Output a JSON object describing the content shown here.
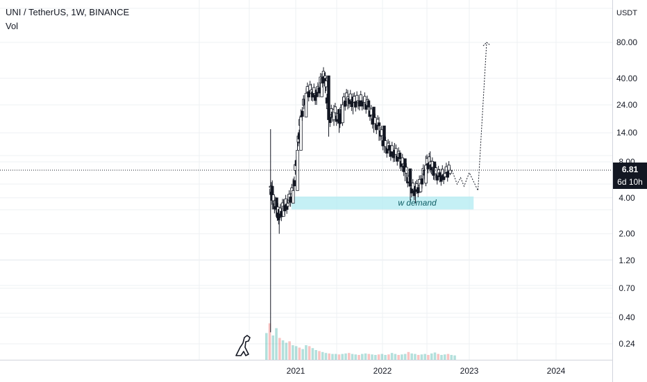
{
  "header": {
    "symbol_line": "UNI / TetherUS, 1W, BINANCE",
    "volume_label": "Vol"
  },
  "price_axis": {
    "unit": "USDT",
    "current_price": "6.81",
    "countdown": "6d 10h"
  },
  "annotation": {
    "label": "w demand"
  },
  "colors": {
    "up": "#26a69a",
    "down": "#ef5350",
    "candle_body": "#131722",
    "demand_zone": "#b2ebf2",
    "grid": "#eef0f3",
    "badge": "#131722"
  },
  "chart_data": {
    "type": "candlestick",
    "title": "UNI / TetherUS, 1W, BINANCE",
    "y_scale": "log",
    "y_unit": "USDT",
    "y_ticks": [
      0.24,
      0.4,
      0.7,
      1.2,
      2.0,
      4.0,
      8.0,
      14.0,
      24.0,
      40.0,
      80.0
    ],
    "y_tick_labels": [
      "0.24",
      "0.40",
      "0.70",
      "1.20",
      "2.00",
      "4.00",
      "8.00",
      "14.00",
      "24.00",
      "40.00",
      "80.00"
    ],
    "x_tick_labels": [
      "2021",
      "2022",
      "2023",
      "2024"
    ],
    "x_ticks": [
      2021.0,
      2022.0,
      2023.0,
      2024.0
    ],
    "current_price": 6.81,
    "weekly_close_path": [
      {
        "t": 2020.71,
        "close": 5.0,
        "high": 15.0,
        "low": 0.3
      },
      {
        "t": 2020.73,
        "close": 4.0,
        "high": 5.6,
        "low": 3.2
      },
      {
        "t": 2020.78,
        "close": 3.2,
        "high": 3.8,
        "low": 2.7
      },
      {
        "t": 2020.81,
        "close": 2.8,
        "high": 3.2,
        "low": 2.0
      },
      {
        "t": 2020.86,
        "close": 3.4,
        "high": 3.9,
        "low": 2.9
      },
      {
        "t": 2020.91,
        "close": 3.6,
        "high": 4.3,
        "low": 3.2
      },
      {
        "t": 2020.97,
        "close": 4.6,
        "high": 5.8,
        "low": 3.8
      },
      {
        "t": 2021.02,
        "close": 10.0,
        "high": 13.0,
        "low": 6.5
      },
      {
        "t": 2021.06,
        "close": 19.0,
        "high": 22.0,
        "low": 14.0
      },
      {
        "t": 2021.12,
        "close": 30.0,
        "high": 33.0,
        "low": 24.0
      },
      {
        "t": 2021.18,
        "close": 32.0,
        "high": 36.0,
        "low": 26.0
      },
      {
        "t": 2021.24,
        "close": 28.0,
        "high": 34.0,
        "low": 24.0
      },
      {
        "t": 2021.3,
        "close": 40.0,
        "high": 44.0,
        "low": 28.0
      },
      {
        "t": 2021.34,
        "close": 42.0,
        "high": 45.0,
        "low": 30.0
      },
      {
        "t": 2021.38,
        "close": 18.0,
        "high": 36.0,
        "low": 13.0
      },
      {
        "t": 2021.44,
        "close": 22.0,
        "high": 24.0,
        "low": 16.0
      },
      {
        "t": 2021.5,
        "close": 17.0,
        "high": 22.0,
        "low": 14.0
      },
      {
        "t": 2021.54,
        "close": 24.0,
        "high": 28.0,
        "low": 16.0
      },
      {
        "t": 2021.6,
        "close": 28.0,
        "high": 32.0,
        "low": 22.0
      },
      {
        "t": 2021.66,
        "close": 25.0,
        "high": 30.0,
        "low": 20.0
      },
      {
        "t": 2021.72,
        "close": 26.0,
        "high": 29.0,
        "low": 22.0
      },
      {
        "t": 2021.78,
        "close": 26.0,
        "high": 28.0,
        "low": 22.0
      },
      {
        "t": 2021.84,
        "close": 23.0,
        "high": 27.0,
        "low": 19.0
      },
      {
        "t": 2021.9,
        "close": 17.0,
        "high": 22.0,
        "low": 14.0
      },
      {
        "t": 2021.96,
        "close": 16.0,
        "high": 19.0,
        "low": 12.0
      },
      {
        "t": 2022.02,
        "close": 11.0,
        "high": 16.0,
        "low": 9.5
      },
      {
        "t": 2022.08,
        "close": 10.0,
        "high": 12.0,
        "low": 8.8
      },
      {
        "t": 2022.14,
        "close": 9.5,
        "high": 11.5,
        "low": 8.0
      },
      {
        "t": 2022.2,
        "close": 8.5,
        "high": 10.0,
        "low": 7.0
      },
      {
        "t": 2022.26,
        "close": 7.0,
        "high": 8.5,
        "low": 5.5
      },
      {
        "t": 2022.32,
        "close": 5.0,
        "high": 6.8,
        "low": 3.8
      },
      {
        "t": 2022.38,
        "close": 4.5,
        "high": 5.5,
        "low": 3.6
      },
      {
        "t": 2022.44,
        "close": 5.3,
        "high": 6.2,
        "low": 4.4
      },
      {
        "t": 2022.5,
        "close": 7.5,
        "high": 9.0,
        "low": 5.0
      },
      {
        "t": 2022.55,
        "close": 8.0,
        "high": 9.8,
        "low": 6.5
      },
      {
        "t": 2022.6,
        "close": 6.5,
        "high": 7.8,
        "low": 5.6
      },
      {
        "t": 2022.66,
        "close": 6.0,
        "high": 7.0,
        "low": 5.4
      },
      {
        "t": 2022.72,
        "close": 6.4,
        "high": 7.2,
        "low": 5.8
      },
      {
        "t": 2022.78,
        "close": 6.81,
        "high": 7.2,
        "low": 6.2
      }
    ],
    "projection_path": [
      {
        "t": 2022.8,
        "price": 6.81
      },
      {
        "t": 2022.86,
        "price": 5.2
      },
      {
        "t": 2022.9,
        "price": 5.9
      },
      {
        "t": 2022.94,
        "price": 5.0
      },
      {
        "t": 2023.0,
        "price": 6.5
      },
      {
        "t": 2023.1,
        "price": 4.6
      },
      {
        "t": 2023.2,
        "price": 80.0
      }
    ],
    "demand_zone": {
      "t_start": 2020.95,
      "t_end": 2023.05,
      "price_low": 3.2,
      "price_high": 4.1,
      "label": "w demand"
    },
    "volume_relative": [
      0.55,
      0.75,
      0.5,
      0.65,
      0.45,
      0.4,
      0.35,
      0.38,
      0.3,
      0.28,
      0.25,
      0.22,
      0.3,
      0.28,
      0.24,
      0.2,
      0.18,
      0.16,
      0.14,
      0.13,
      0.12,
      0.12,
      0.11,
      0.12,
      0.13,
      0.14,
      0.12,
      0.11,
      0.1,
      0.12,
      0.13,
      0.12,
      0.11,
      0.1,
      0.11,
      0.12,
      0.1,
      0.11,
      0.14,
      0.12,
      0.1,
      0.11,
      0.12,
      0.16,
      0.13,
      0.12,
      0.1,
      0.11,
      0.12,
      0.1,
      0.13,
      0.15,
      0.12,
      0.1,
      0.11,
      0.12,
      0.1,
      0.09
    ]
  }
}
